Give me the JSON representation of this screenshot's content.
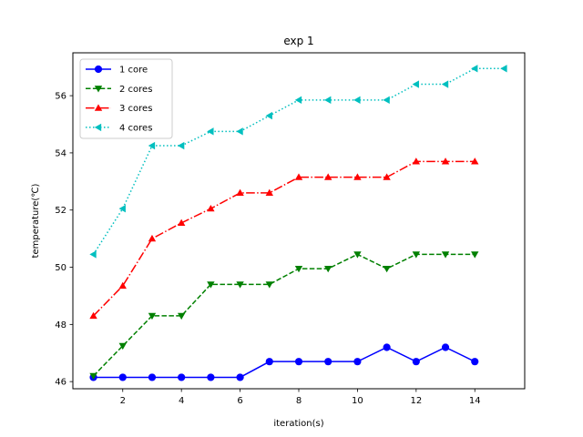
{
  "chart_data": {
    "type": "line",
    "title": "exp 1",
    "xlabel": "iteration(s)",
    "ylabel": "temperature(℃)",
    "xlim": [
      0.3,
      15.7
    ],
    "ylim": [
      45.75,
      57.5
    ],
    "xticks": [
      2,
      4,
      6,
      8,
      10,
      12,
      14
    ],
    "yticks": [
      46,
      48,
      50,
      52,
      54,
      56
    ],
    "grid": false,
    "legend_position": "top-left",
    "series": [
      {
        "name": "1 core",
        "color": "#0000ff",
        "line_style": "solid",
        "marker": "circle",
        "x": [
          1,
          2,
          3,
          4,
          5,
          6,
          7,
          8,
          9,
          10,
          11,
          12,
          13,
          14
        ],
        "y": [
          46.15,
          46.15,
          46.15,
          46.15,
          46.15,
          46.15,
          46.7,
          46.7,
          46.7,
          46.7,
          47.2,
          46.7,
          47.2,
          46.7
        ]
      },
      {
        "name": "2 cores",
        "color": "#008000",
        "line_style": "dashed",
        "marker": "triangle-down",
        "x": [
          1,
          2,
          3,
          4,
          5,
          6,
          7,
          8,
          9,
          10,
          11,
          12,
          13,
          14
        ],
        "y": [
          46.2,
          47.25,
          48.3,
          48.3,
          49.4,
          49.4,
          49.4,
          49.95,
          49.95,
          50.45,
          49.95,
          50.45,
          50.45,
          50.45
        ]
      },
      {
        "name": "3 cores",
        "color": "#ff0000",
        "line_style": "dashdot",
        "marker": "triangle-up",
        "x": [
          1,
          2,
          3,
          4,
          5,
          6,
          7,
          8,
          9,
          10,
          11,
          12,
          13,
          14
        ],
        "y": [
          48.3,
          49.35,
          51.0,
          51.55,
          52.05,
          52.6,
          52.6,
          53.15,
          53.15,
          53.15,
          53.15,
          53.7,
          53.7,
          53.7
        ]
      },
      {
        "name": "4 cores",
        "color": "#00bfbf",
        "line_style": "dotted",
        "marker": "triangle-left",
        "x": [
          1,
          2,
          3,
          4,
          5,
          6,
          7,
          8,
          9,
          10,
          11,
          12,
          13,
          14,
          15
        ],
        "y": [
          50.45,
          52.05,
          54.25,
          54.25,
          54.75,
          54.75,
          55.3,
          55.85,
          55.85,
          55.85,
          55.85,
          56.4,
          56.4,
          56.95,
          56.95
        ]
      }
    ]
  }
}
